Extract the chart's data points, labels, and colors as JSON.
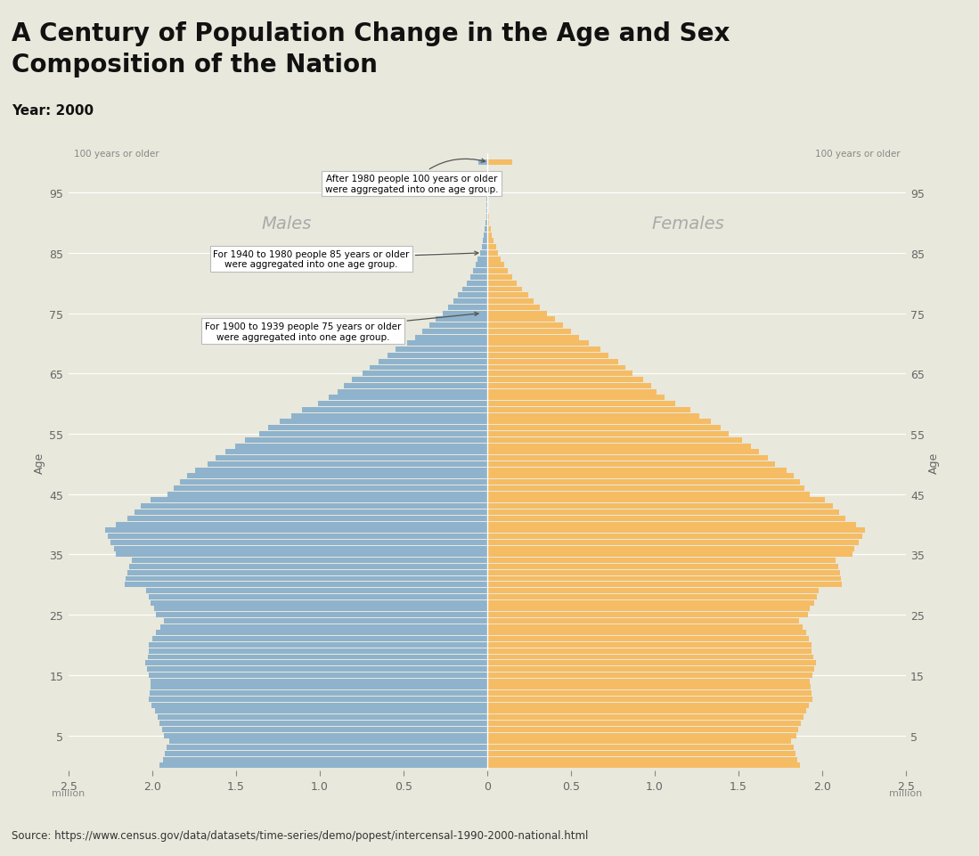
{
  "title": "A Century of Population Change in the Age and Sex\nComposition of the Nation",
  "subtitle": "Year: 2000",
  "source": "Source: https://www.census.gov/data/datasets/time-series/demo/popest/intercensal-1990-2000-national.html",
  "male_color": "#8fb3cc",
  "female_color": "#f5bc64",
  "background_color": "#e8e8dc",
  "chart_bg_color": "#e8e8dc",
  "xlim": 2500000,
  "ages": [
    0,
    1,
    2,
    3,
    4,
    5,
    6,
    7,
    8,
    9,
    10,
    11,
    12,
    13,
    14,
    15,
    16,
    17,
    18,
    19,
    20,
    21,
    22,
    23,
    24,
    25,
    26,
    27,
    28,
    29,
    30,
    31,
    32,
    33,
    34,
    35,
    36,
    37,
    38,
    39,
    40,
    41,
    42,
    43,
    44,
    45,
    46,
    47,
    48,
    49,
    50,
    51,
    52,
    53,
    54,
    55,
    56,
    57,
    58,
    59,
    60,
    61,
    62,
    63,
    64,
    65,
    66,
    67,
    68,
    69,
    70,
    71,
    72,
    73,
    74,
    75,
    76,
    77,
    78,
    79,
    80,
    81,
    82,
    83,
    84,
    85,
    86,
    87,
    88,
    89,
    90,
    91,
    92,
    93,
    94,
    95,
    96,
    97,
    98,
    99,
    100
  ],
  "males": [
    1955000,
    1936000,
    1926000,
    1912000,
    1897000,
    1932000,
    1941000,
    1956000,
    1970000,
    1985000,
    2003000,
    2021000,
    2016000,
    2012000,
    2008000,
    2022000,
    2030000,
    2043000,
    2028000,
    2022000,
    2023000,
    2002000,
    1980000,
    1954000,
    1930000,
    1976000,
    1990000,
    2010000,
    2023000,
    2035000,
    2163000,
    2158000,
    2150000,
    2138000,
    2122000,
    2218000,
    2227000,
    2250000,
    2268000,
    2283000,
    2218000,
    2150000,
    2108000,
    2066000,
    2012000,
    1910000,
    1870000,
    1834000,
    1793000,
    1745000,
    1670000,
    1620000,
    1561000,
    1506000,
    1446000,
    1361000,
    1306000,
    1240000,
    1167000,
    1108000,
    1012000,
    946000,
    894000,
    858000,
    809000,
    744000,
    699000,
    649000,
    592000,
    545000,
    479000,
    430000,
    388000,
    347000,
    305000,
    264000,
    232000,
    199000,
    173000,
    146000,
    122000,
    100000,
    83000,
    68000,
    55000,
    43000,
    32000,
    25000,
    18000,
    13000,
    9000,
    6000,
    4000,
    3000,
    2000,
    1000,
    1000,
    1000,
    0,
    0,
    50000
  ],
  "females": [
    1869000,
    1852000,
    1843000,
    1830000,
    1816000,
    1850000,
    1860000,
    1875000,
    1890000,
    1905000,
    1924000,
    1942000,
    1937000,
    1933000,
    1929000,
    1944000,
    1952000,
    1965000,
    1948000,
    1940000,
    1940000,
    1923000,
    1906000,
    1885000,
    1866000,
    1915000,
    1930000,
    1952000,
    1968000,
    1983000,
    2120000,
    2116000,
    2109000,
    2099000,
    2084000,
    2185000,
    2196000,
    2221000,
    2242000,
    2260000,
    2202000,
    2140000,
    2103000,
    2067000,
    2018000,
    1930000,
    1897000,
    1867000,
    1832000,
    1789000,
    1720000,
    1676000,
    1623000,
    1575000,
    1522000,
    1444000,
    1396000,
    1337000,
    1268000,
    1213000,
    1122000,
    1059000,
    1012000,
    979000,
    934000,
    869000,
    828000,
    781000,
    725000,
    678000,
    606000,
    551000,
    504000,
    456000,
    408000,
    357000,
    317000,
    278000,
    246000,
    210000,
    178000,
    149000,
    125000,
    104000,
    83000,
    65000,
    52000,
    39000,
    29000,
    21000,
    14000,
    10000,
    7000,
    5000,
    3000,
    2000,
    2000,
    1000,
    1000,
    1000,
    150000
  ],
  "ytick_positions": [
    5,
    15,
    25,
    35,
    45,
    55,
    65,
    75,
    85,
    95
  ],
  "ytick_labels": [
    "5",
    "15",
    "25",
    "35",
    "45",
    "55",
    "65",
    "75",
    "85",
    "95"
  ],
  "xtick_values": [
    -2500000,
    -2000000,
    -1500000,
    -1000000,
    -500000,
    0,
    500000,
    1000000,
    1500000,
    2000000,
    2500000
  ],
  "xtick_labels": [
    "2.5",
    "2.0",
    "1.5",
    "1.0",
    "0.5",
    "0",
    "0.5",
    "1.0",
    "1.5",
    "2.0",
    "2.5"
  ]
}
